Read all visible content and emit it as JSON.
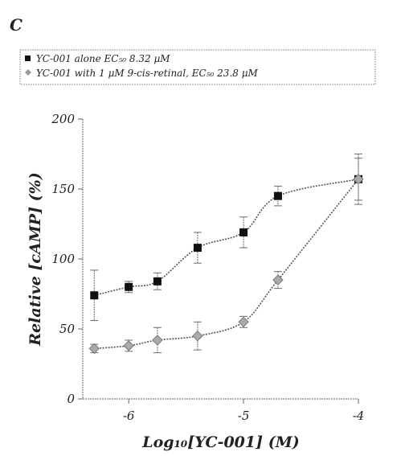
{
  "panel_label": "C",
  "chart_data": {
    "type": "scatter",
    "title": "",
    "xlabel": "Log₁₀[YC-001] (M)",
    "ylabel": "Relative [cAMP] (%)",
    "xlim": [
      -6.4,
      -4
    ],
    "ylim": [
      0,
      200
    ],
    "x_ticks": [
      -6,
      -5,
      -4
    ],
    "x_tick_labels": [
      "-6",
      "-5",
      "-4"
    ],
    "y_ticks": [
      0,
      50,
      100,
      150,
      200
    ],
    "y_tick_labels": [
      "0",
      "50",
      "100",
      "150",
      "200"
    ],
    "grid": false,
    "legend_position": "top",
    "series": [
      {
        "name": "YC-001 alone   EC₅₀ 8.32 μM",
        "marker": "square",
        "color": "#111111",
        "x": [
          -6.3,
          -6.0,
          -5.75,
          -5.4,
          -5.0,
          -4.7,
          -4.0
        ],
        "y": [
          74,
          80,
          84,
          108,
          119,
          145,
          157
        ],
        "err": [
          18,
          4,
          6,
          11,
          11,
          7,
          15
        ]
      },
      {
        "name": "YC-001 with 1 μM 9-cis-retinal, EC₅₀ 23.8 μM",
        "marker": "diamond",
        "color": "#777777",
        "x": [
          -6.3,
          -6.0,
          -5.75,
          -5.4,
          -5.0,
          -4.7,
          -4.0
        ],
        "y": [
          36,
          38,
          42,
          45,
          55,
          85,
          157
        ],
        "err": [
          3,
          4,
          9,
          10,
          4,
          6,
          18
        ]
      }
    ]
  }
}
